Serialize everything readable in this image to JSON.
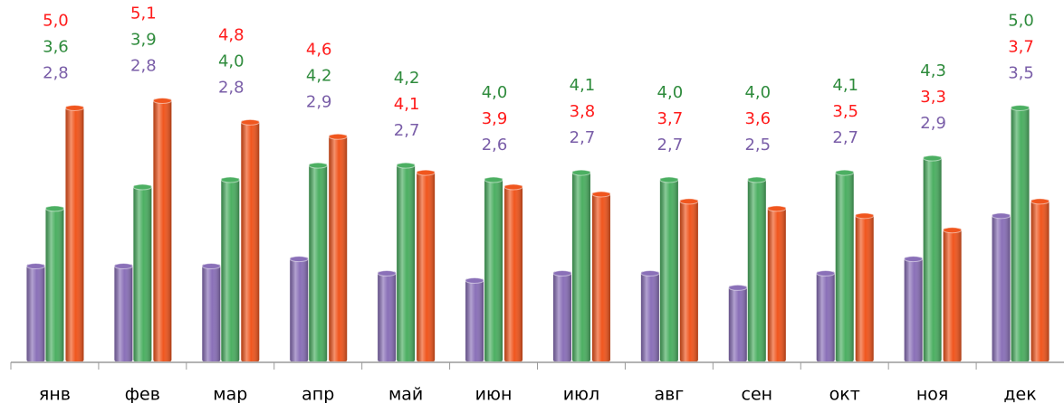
{
  "chart_data": {
    "type": "bar",
    "categories": [
      "янв",
      "фев",
      "мар",
      "апр",
      "май",
      "июн",
      "июл",
      "авг",
      "сен",
      "окт",
      "ноя",
      "дек"
    ],
    "series": [
      {
        "color": "#8a70b8",
        "label_color": "#7a5ea8",
        "values": [
          2.8,
          2.8,
          2.8,
          2.9,
          2.7,
          2.6,
          2.7,
          2.7,
          2.5,
          2.7,
          2.9,
          3.5
        ],
        "value_labels": [
          "2,8",
          "2,8",
          "2,8",
          "2,9",
          "2,7",
          "2,6",
          "2,7",
          "2,7",
          "2,5",
          "2,7",
          "2,9",
          "3,5"
        ]
      },
      {
        "color": "#4caf62",
        "label_color": "#2e8b3c",
        "values": [
          3.6,
          3.9,
          4.0,
          4.2,
          4.2,
          4.0,
          4.1,
          4.0,
          4.0,
          4.1,
          4.3,
          5.0
        ],
        "value_labels": [
          "3,6",
          "3,9",
          "4,0",
          "4,2",
          "4,2",
          "4,0",
          "4,1",
          "4,0",
          "4,0",
          "4,1",
          "4,3",
          "5,0"
        ]
      },
      {
        "color": "#f0561e",
        "label_color": "#ff1a1a",
        "values": [
          5.0,
          5.1,
          4.8,
          4.6,
          4.1,
          3.9,
          3.8,
          3.7,
          3.6,
          3.5,
          3.3,
          3.7
        ],
        "value_labels": [
          "5,0",
          "5,1",
          "4,8",
          "4,6",
          "4,1",
          "3,9",
          "3,8",
          "3,7",
          "3,6",
          "3,5",
          "3,3",
          "3,7"
        ]
      }
    ],
    "ylim": [
      1.45,
      6.35
    ]
  }
}
